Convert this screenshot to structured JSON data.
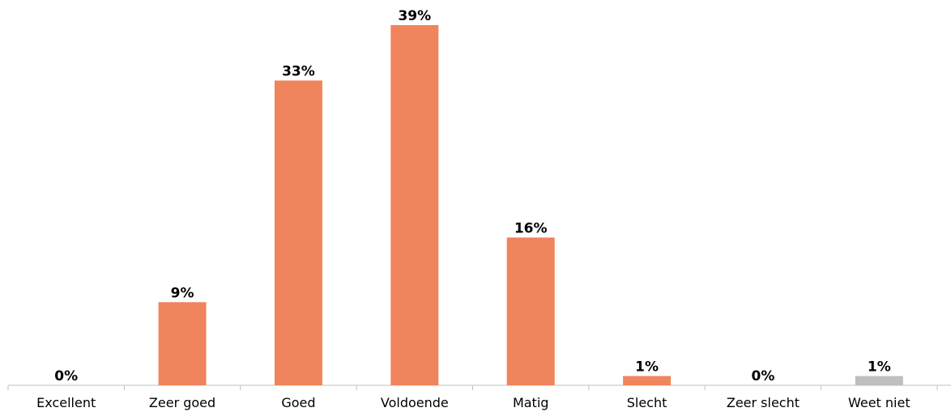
{
  "chart_data": {
    "type": "bar",
    "categories": [
      "Excellent",
      "Zeer goed",
      "Goed",
      "Voldoende",
      "Matig",
      "Slecht",
      "Zeer slecht",
      "Weet niet"
    ],
    "values": [
      0,
      9,
      33,
      39,
      16,
      1,
      0,
      1
    ],
    "value_labels": [
      "0%",
      "9%",
      "33%",
      "39%",
      "16%",
      "1%",
      "0%",
      "1%"
    ],
    "colors": [
      "#f0845c",
      "#f0845c",
      "#f0845c",
      "#f0845c",
      "#f0845c",
      "#f0845c",
      "#f0845c",
      "#bfbfbf"
    ]
  }
}
